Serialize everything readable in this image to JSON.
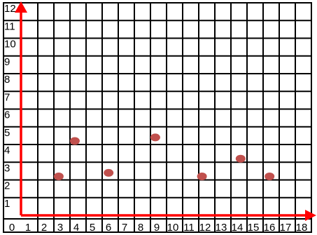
{
  "chart_data": {
    "type": "scatter",
    "title": "",
    "xlabel": "",
    "ylabel": "",
    "xlim": [
      0,
      18
    ],
    "ylim": [
      0,
      12
    ],
    "x_ticks": [
      "0",
      "1",
      "2",
      "3",
      "4",
      "5",
      "6",
      "7",
      "8",
      "9",
      "10",
      "11",
      "12",
      "13",
      "14",
      "15",
      "16",
      "17",
      "18"
    ],
    "y_ticks": [
      "1",
      "2",
      "3",
      "4",
      "5",
      "6",
      "7",
      "8",
      "9",
      "10",
      "11",
      "12"
    ],
    "grid": true,
    "legend": "none",
    "colors": {
      "grid": "#000000",
      "axes": "#ff0000",
      "points": "#c0504d"
    },
    "points": [
      {
        "x": 2.3,
        "y": 2.2
      },
      {
        "x": 3.3,
        "y": 4.2
      },
      {
        "x": 5.4,
        "y": 2.4
      },
      {
        "x": 8.3,
        "y": 4.4
      },
      {
        "x": 11.2,
        "y": 2.2
      },
      {
        "x": 13.6,
        "y": 3.2
      },
      {
        "x": 15.4,
        "y": 2.2
      }
    ]
  }
}
